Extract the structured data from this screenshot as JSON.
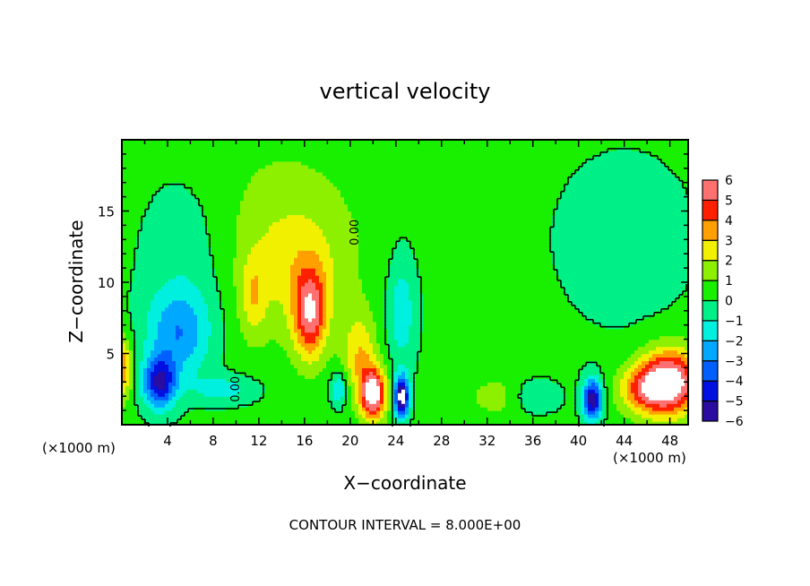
{
  "chart_data": {
    "type": "heatmap",
    "title": "vertical velocity",
    "xlabel": "X−coordinate",
    "ylabel": "Z−coordinate",
    "x_unit_left": "(×1000 m)",
    "x_unit_right": "(×1000 m)",
    "xlim": [
      0,
      49.6
    ],
    "ylim": [
      0,
      20
    ],
    "xticks": [
      4,
      8,
      12,
      16,
      20,
      24,
      28,
      32,
      36,
      40,
      44,
      48
    ],
    "xtick_labels": [
      "4",
      "8",
      "12",
      "16",
      "20",
      "24",
      "28",
      "32",
      "36",
      "40",
      "44",
      "48"
    ],
    "yticks": [
      5,
      10,
      15
    ],
    "ytick_labels": [
      "5",
      "10",
      "15"
    ],
    "footer": "CONTOUR INTERVAL = 8.000E+00",
    "contour_label": "0.00",
    "contour_labels": [
      {
        "x": 20.7,
        "z": 13.5,
        "text": "0.00"
      },
      {
        "x": 10.3,
        "z": 2.5,
        "text": "0.00"
      }
    ],
    "colorbar": {
      "levels": [
        -6,
        -5,
        -4,
        -3,
        -2,
        -1,
        0,
        1,
        2,
        3,
        4,
        5,
        6
      ],
      "labels": [
        "6",
        "5",
        "4",
        "3",
        "2",
        "1",
        "0",
        "−1",
        "−2",
        "−3",
        "−4",
        "−5",
        "−6"
      ],
      "colors": [
        "#2a0ca0",
        "#0010e0",
        "#0060ff",
        "#00a8ff",
        "#00f0e0",
        "#00f088",
        "#18f000",
        "#8cf000",
        "#f0f000",
        "#ffa000",
        "#ff2000",
        "#ff7070"
      ],
      "over_color": "#ffffff",
      "under_color": "#ffffff"
    },
    "field": {
      "base": 0.25,
      "features": [
        {
          "x": 16.5,
          "z": 7.8,
          "amp": 4.8,
          "sx": 1.0,
          "sz": 2.2
        },
        {
          "x": 15.5,
          "z": 11,
          "amp": 1.2,
          "sx": 3,
          "sz": 3
        },
        {
          "x": 22,
          "z": 2.2,
          "amp": 6.8,
          "sx": 0.8,
          "sz": 1.3
        },
        {
          "x": 20.8,
          "z": 5,
          "amp": 2.5,
          "sx": 1,
          "sz": 2
        },
        {
          "x": 24.5,
          "z": 2,
          "amp": -7,
          "sx": 0.45,
          "sz": 1.0
        },
        {
          "x": 3.3,
          "z": 3,
          "amp": -5.2,
          "sx": 1.0,
          "sz": 1.3
        },
        {
          "x": 5,
          "z": 6.5,
          "amp": -3,
          "sx": 2,
          "sz": 2.2
        },
        {
          "x": 6,
          "z": 12,
          "amp": -1.0,
          "sx": 3,
          "sz": 4
        },
        {
          "x": 48,
          "z": 3,
          "amp": 7,
          "sx": 1.8,
          "sz": 1.6
        },
        {
          "x": 45.5,
          "z": 2.5,
          "amp": 3,
          "sx": 1.5,
          "sz": 1.2
        },
        {
          "x": 41.2,
          "z": 1.8,
          "amp": -6,
          "sx": 0.6,
          "sz": 1.0
        },
        {
          "x": 14,
          "z": 13,
          "amp": 1.3,
          "sx": 5,
          "sz": 5
        },
        {
          "x": 24.5,
          "z": 8,
          "amp": -2,
          "sx": 0.9,
          "sz": 2.8
        },
        {
          "x": 0,
          "z": 4,
          "amp": 3.8,
          "sx": 0.6,
          "sz": 1.5
        },
        {
          "x": 11.5,
          "z": 9,
          "amp": 1.8,
          "sx": 0.8,
          "sz": 2
        },
        {
          "x": 33,
          "z": 2,
          "amp": 1.3,
          "sx": 2,
          "sz": 1
        },
        {
          "x": 44,
          "z": 13,
          "amp": -0.9,
          "sx": 4,
          "sz": 4
        },
        {
          "x": 9,
          "z": 2.5,
          "amp": -1.8,
          "sx": 2,
          "sz": 0.7
        },
        {
          "x": 19,
          "z": 2.5,
          "amp": -2.5,
          "sx": 0.5,
          "sz": 0.8
        },
        {
          "x": 36,
          "z": 2,
          "amp": -1.5,
          "sx": 1.5,
          "sz": 0.8
        }
      ]
    }
  }
}
